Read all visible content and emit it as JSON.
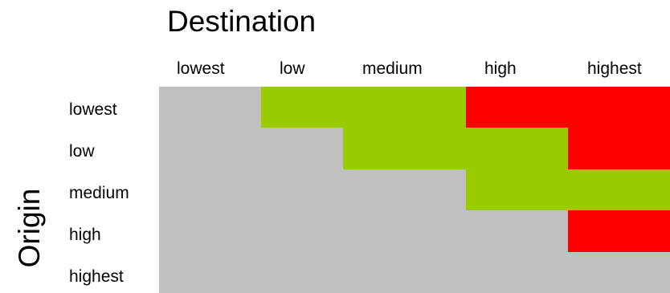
{
  "title": "Destination",
  "ylabel": "Origin",
  "columns": [
    "lowest",
    "low",
    "medium",
    "high",
    "highest"
  ],
  "rows": [
    "lowest",
    "low",
    "medium",
    "high",
    "highest"
  ],
  "colors": {
    "gray": "#c0c0c0",
    "green": "#99cc00",
    "red": "#ff0000"
  },
  "segments": [
    {
      "row": 0,
      "from": 0.0,
      "to": 1.0,
      "color": "gray"
    },
    {
      "row": 0,
      "from": 1.0,
      "to": 3.0,
      "color": "green"
    },
    {
      "row": 0,
      "from": 3.0,
      "to": 5.0,
      "color": "red"
    },
    {
      "row": 1,
      "from": 0.0,
      "to": 1.8,
      "color": "gray"
    },
    {
      "row": 1,
      "from": 1.8,
      "to": 4.0,
      "color": "green"
    },
    {
      "row": 1,
      "from": 4.0,
      "to": 5.0,
      "color": "red"
    },
    {
      "row": 2,
      "from": 0.0,
      "to": 3.0,
      "color": "gray"
    },
    {
      "row": 2,
      "from": 3.0,
      "to": 5.0,
      "color": "green"
    },
    {
      "row": 3,
      "from": 0.0,
      "to": 4.0,
      "color": "gray"
    },
    {
      "row": 3,
      "from": 4.0,
      "to": 5.0,
      "color": "red"
    },
    {
      "row": 4,
      "from": 0.0,
      "to": 5.0,
      "color": "gray"
    }
  ]
}
